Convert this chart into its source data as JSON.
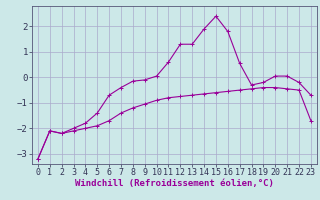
{
  "background_color": "#cce8e8",
  "grid_color": "#aaaacc",
  "line_color": "#990099",
  "xlabel": "Windchill (Refroidissement éolien,°C)",
  "xlabel_fontsize": 6.5,
  "tick_fontsize": 6,
  "xlim": [
    -0.5,
    23.5
  ],
  "ylim": [
    -3.4,
    2.8
  ],
  "yticks": [
    -3,
    -2,
    -1,
    0,
    1,
    2
  ],
  "xticks": [
    0,
    1,
    2,
    3,
    4,
    5,
    6,
    7,
    8,
    9,
    10,
    11,
    12,
    13,
    14,
    15,
    16,
    17,
    18,
    19,
    20,
    21,
    22,
    23
  ],
  "line1_x": [
    0,
    1,
    2,
    3,
    4,
    5,
    6,
    7,
    8,
    9,
    10,
    11,
    12,
    13,
    14,
    15,
    16,
    17,
    18,
    19,
    20,
    21,
    22,
    23
  ],
  "line1_y": [
    -3.2,
    -2.1,
    -2.2,
    -2.1,
    -2.0,
    -1.9,
    -1.7,
    -1.4,
    -1.2,
    -1.05,
    -0.9,
    -0.8,
    -0.75,
    -0.7,
    -0.65,
    -0.6,
    -0.55,
    -0.5,
    -0.45,
    -0.4,
    -0.4,
    -0.45,
    -0.5,
    -1.7
  ],
  "line2_x": [
    0,
    1,
    2,
    3,
    4,
    5,
    6,
    7,
    8,
    9,
    10,
    11,
    12,
    13,
    14,
    15,
    16,
    17,
    18,
    19,
    20,
    21,
    22,
    23
  ],
  "line2_y": [
    -3.2,
    -2.1,
    -2.2,
    -2.0,
    -1.8,
    -1.4,
    -0.7,
    -0.4,
    -0.15,
    -0.1,
    0.05,
    0.6,
    1.3,
    1.3,
    1.9,
    2.4,
    1.8,
    0.55,
    -0.3,
    -0.2,
    0.05,
    0.05,
    -0.2,
    -0.7
  ],
  "figwidth": 3.2,
  "figheight": 2.0,
  "dpi": 100
}
